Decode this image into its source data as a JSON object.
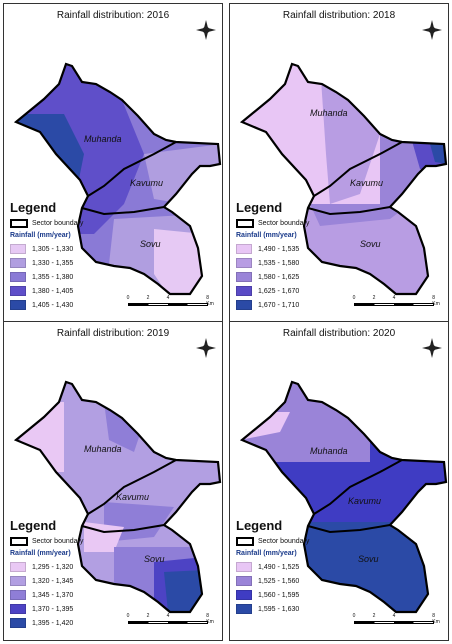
{
  "panels": [
    {
      "title": "Rainfall distribution: 2016",
      "legend_title": "Legend",
      "boundary_label": "Sector boundary",
      "rain_label": "Rainfall (mm/year)",
      "classes": [
        "1,305 - 1,330",
        "1,330 - 1,355",
        "1,355 - 1,380",
        "1,380 - 1,405",
        "1,405 - 1,430"
      ],
      "colors": [
        "#e6c9f4",
        "#b09ee0",
        "#8a7ad6",
        "#5f4fc9",
        "#2b4aa6"
      ],
      "places": [
        "Muhanda",
        "Kavumu",
        "Sovu"
      ],
      "scale": [
        "0",
        "2",
        "4",
        "8 Km"
      ]
    },
    {
      "title": "Rainfall distribution: 2018",
      "legend_title": "Legend",
      "boundary_label": "Sector boundary",
      "rain_label": "Rainfall (mm/year)",
      "classes": [
        "1,490 - 1,535",
        "1,535 - 1,580",
        "1,580 - 1,625",
        "1,625 - 1,670",
        "1,670 - 1,710"
      ],
      "colors": [
        "#e8c6f5",
        "#b89de3",
        "#9a84d8",
        "#5a4bc6",
        "#2b4aa6"
      ],
      "places": [
        "Muhanda",
        "Kavumu",
        "Sovu"
      ],
      "scale": [
        "0",
        "2",
        "4",
        "8 Km"
      ]
    },
    {
      "title": "Rainfall distribution: 2019",
      "legend_title": "Legend",
      "boundary_label": "Sector boundary",
      "rain_label": "Rainfall (mm/year)",
      "classes": [
        "1,295 - 1,320",
        "1,320 - 1,345",
        "1,345 - 1,370",
        "1,370 - 1,395",
        "1,395 - 1,420"
      ],
      "colors": [
        "#e9c8f4",
        "#b29fe2",
        "#8f7ed7",
        "#4d43c4",
        "#2b4aa6"
      ],
      "places": [
        "Muhanda",
        "Kavumu",
        "Sovu"
      ],
      "scale": [
        "0",
        "2",
        "4",
        "8 Km"
      ]
    },
    {
      "title": "Rainfall distribution: 2020",
      "legend_title": "Legend",
      "boundary_label": "Sector boundary",
      "rain_label": "Rainfall (mm/year)",
      "classes": [
        "1,490 - 1,525",
        "1,525 - 1,560",
        "1,560 - 1,595",
        "1,595 - 1,630"
      ],
      "colors": [
        "#e8c6f5",
        "#9a84d8",
        "#3f3cc3",
        "#2b4aa6"
      ],
      "places": [
        "Muhanda",
        "Kavumu",
        "Sovu"
      ],
      "scale": [
        "0",
        "2",
        "4",
        "8 Km"
      ]
    }
  ],
  "north_arrow_icon": "north-arrow-icon"
}
